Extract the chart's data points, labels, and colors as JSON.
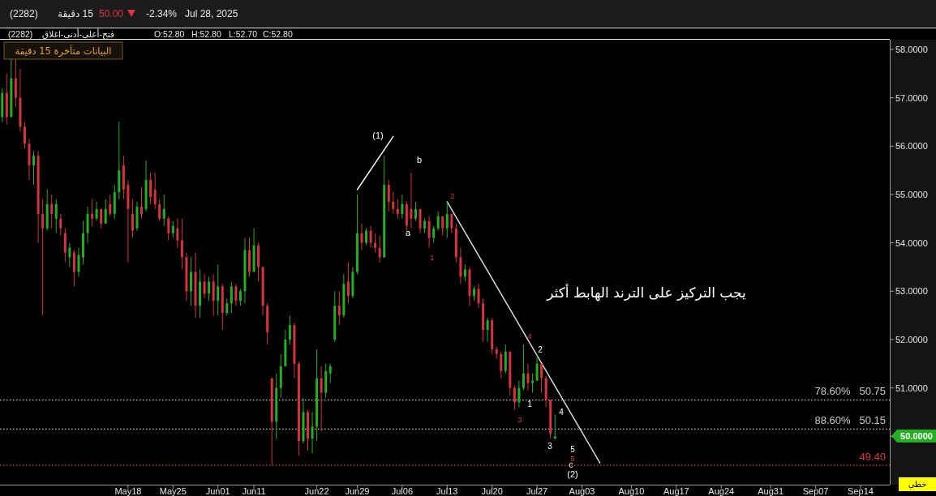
{
  "chart_data": {
    "type": "candlestick",
    "title": "(2282)",
    "subtitle": "15 دقيقة",
    "categories": [
      null,
      null,
      null,
      null,
      null,
      null,
      null,
      null,
      null,
      null,
      null,
      null,
      null,
      null,
      null,
      null,
      null,
      null,
      null,
      null,
      null,
      null,
      null,
      null,
      null,
      null,
      null,
      null,
      "May18",
      null,
      null,
      null,
      null,
      null,
      null,
      null,
      null,
      null,
      "May25",
      null,
      null,
      null,
      null,
      null,
      null,
      null,
      null,
      null,
      "Jun01",
      null,
      null,
      null,
      null,
      null,
      null,
      null,
      "Jun11",
      null,
      null,
      null,
      null,
      null,
      null,
      null,
      null,
      null,
      null,
      null,
      null,
      null,
      "Jun22",
      null,
      null,
      null,
      null,
      null,
      null,
      null,
      null,
      "Jun29",
      null,
      null,
      null,
      null,
      null,
      null,
      null,
      null,
      null,
      "Jul06",
      null,
      null,
      null,
      null,
      null,
      null,
      null,
      null,
      null,
      "Jul13",
      null,
      null,
      null,
      null,
      null,
      null,
      null,
      null,
      null,
      "Jul20",
      null,
      null,
      null,
      null,
      null,
      null,
      null,
      null,
      null,
      "Jul27",
      null,
      null,
      null,
      null,
      null,
      null,
      null,
      null,
      null,
      "Aug03",
      null,
      null,
      null,
      null,
      null,
      null,
      null,
      null,
      null,
      null,
      "Aug10",
      null,
      null,
      null,
      null,
      null,
      null,
      null,
      null,
      null,
      "Aug17",
      null,
      null,
      null,
      null,
      null,
      null,
      null,
      null,
      null,
      "Aug24",
      null,
      null,
      null,
      null,
      null,
      null,
      null,
      null,
      null,
      null,
      "Aug31",
      null,
      null,
      null,
      null,
      null,
      null,
      null,
      null,
      null,
      "Sep07",
      null,
      null,
      null,
      null,
      null,
      null,
      null,
      null,
      null,
      "Sep14",
      null,
      null,
      null,
      null,
      null,
      null
    ],
    "ylim": [
      49,
      58.2
    ],
    "yticks": [
      {
        "value": 50,
        "label": null
      },
      {
        "value": 51,
        "label": "51.0000"
      },
      {
        "value": 52,
        "label": "52.0000"
      },
      {
        "value": 53,
        "label": "53.0000"
      },
      {
        "value": 54,
        "label": "54.0000"
      },
      {
        "value": 55,
        "label": "55.0000"
      },
      {
        "value": 56,
        "label": "56.0000"
      },
      {
        "value": 57,
        "label": "57.0000"
      },
      {
        "value": 58,
        "label": "58.0000"
      }
    ],
    "ohlc": [
      [
        56.6,
        57.2,
        56.5,
        57.1
      ],
      [
        57.1,
        57.5,
        56.45,
        56.6
      ],
      [
        56.6,
        57.8,
        56.6,
        57.4
      ],
      [
        57.4,
        57.8,
        56.8,
        57.0
      ],
      [
        57.0,
        57.6,
        56.3,
        56.4
      ],
      [
        56.4,
        56.5,
        55.95,
        56.05
      ],
      [
        56.05,
        56.15,
        55.3,
        55.6
      ],
      [
        55.6,
        55.9,
        55.2,
        55.8
      ],
      [
        55.8,
        55.9,
        54.0,
        54.6
      ],
      [
        54.6,
        54.9,
        52.5,
        54.3
      ],
      [
        54.3,
        55.1,
        54.25,
        54.8
      ],
      [
        54.8,
        55.0,
        54.3,
        54.6
      ],
      [
        54.5,
        54.9,
        54.2,
        54.8
      ],
      [
        54.5,
        54.6,
        54.15,
        54.3
      ],
      [
        54.2,
        54.3,
        53.6,
        53.8
      ],
      [
        53.7,
        54.0,
        53.5,
        53.9
      ],
      [
        53.8,
        53.85,
        53.1,
        53.4
      ],
      [
        53.4,
        53.9,
        53.3,
        53.75
      ],
      [
        53.7,
        54.45,
        53.55,
        54.2
      ],
      [
        54.2,
        54.75,
        54.0,
        54.6
      ],
      [
        54.6,
        54.9,
        54.35,
        54.5
      ],
      [
        54.5,
        54.85,
        54.45,
        54.7
      ],
      [
        54.7,
        54.7,
        54.3,
        54.4
      ],
      [
        54.4,
        54.9,
        54.4,
        54.7
      ],
      [
        54.8,
        55.0,
        54.55,
        54.6
      ],
      [
        54.6,
        55.2,
        54.5,
        55.05
      ],
      [
        55.05,
        56.5,
        54.9,
        55.5
      ],
      [
        55.6,
        55.8,
        54.9,
        55.1
      ],
      [
        55.2,
        55.3,
        53.6,
        54.7
      ],
      [
        54.6,
        54.9,
        54.1,
        54.25
      ],
      [
        54.3,
        54.85,
        54.25,
        54.75
      ],
      [
        54.75,
        55.15,
        54.5,
        54.6
      ],
      [
        54.7,
        55.7,
        54.65,
        55.3
      ],
      [
        55.3,
        55.45,
        54.8,
        54.95
      ],
      [
        55.1,
        55.45,
        54.7,
        54.8
      ],
      [
        54.8,
        54.9,
        54.45,
        54.5
      ],
      [
        54.5,
        55.0,
        54.35,
        54.7
      ],
      [
        54.5,
        54.55,
        54.05,
        54.2
      ],
      [
        54.2,
        54.45,
        54.1,
        54.35
      ],
      [
        54.3,
        54.5,
        53.9,
        54.05
      ],
      [
        54.05,
        54.5,
        53.45,
        53.7
      ],
      [
        53.7,
        53.8,
        52.8,
        53.0
      ],
      [
        53.0,
        53.7,
        52.7,
        53.4
      ],
      [
        53.4,
        53.8,
        52.45,
        52.7
      ],
      [
        52.7,
        53.45,
        52.45,
        53.2
      ],
      [
        53.2,
        53.35,
        52.85,
        52.95
      ],
      [
        52.95,
        53.3,
        52.8,
        53.2
      ],
      [
        53.2,
        53.35,
        52.5,
        52.8
      ],
      [
        52.8,
        53.55,
        52.5,
        53.1
      ],
      [
        53.1,
        53.15,
        52.2,
        52.55
      ],
      [
        52.55,
        52.85,
        52.5,
        52.75
      ],
      [
        52.75,
        53.2,
        52.55,
        53.1
      ],
      [
        53.1,
        53.15,
        52.7,
        52.8
      ],
      [
        52.8,
        53.05,
        52.7,
        53.0
      ],
      [
        53.0,
        54.1,
        52.75,
        53.85
      ],
      [
        53.85,
        54.1,
        53.3,
        53.4
      ],
      [
        53.4,
        54.3,
        53.4,
        53.95
      ],
      [
        53.95,
        54.0,
        53.2,
        53.5
      ],
      [
        53.5,
        53.5,
        52.5,
        52.7
      ],
      [
        52.7,
        52.75,
        51.9,
        52.15
      ],
      [
        51.2,
        51.2,
        49.4,
        50.3
      ],
      [
        50.3,
        51.3,
        49.95,
        51.0
      ],
      [
        51.0,
        51.7,
        50.8,
        51.45
      ],
      [
        51.45,
        52.2,
        51.45,
        52.0
      ],
      [
        52.0,
        52.5,
        51.9,
        52.3
      ],
      [
        52.3,
        52.35,
        51.2,
        51.5
      ],
      [
        51.5,
        51.55,
        49.6,
        49.9
      ],
      [
        49.9,
        50.8,
        49.85,
        50.5
      ],
      [
        50.5,
        50.55,
        49.7,
        49.95
      ],
      [
        49.95,
        50.5,
        49.65,
        50.2
      ],
      [
        50.2,
        51.8,
        49.9,
        51.2
      ],
      [
        51.2,
        51.45,
        50.1,
        50.9
      ],
      [
        50.9,
        51.5,
        50.8,
        51.35
      ],
      [
        51.3,
        51.5,
        51.1,
        51.45
      ],
      [
        52.0,
        53.0,
        51.95,
        52.7
      ],
      [
        52.7,
        53.0,
        52.3,
        52.5
      ],
      [
        52.5,
        53.35,
        52.45,
        53.15
      ],
      [
        53.2,
        53.6,
        52.75,
        52.9
      ],
      [
        52.9,
        53.5,
        52.85,
        53.4
      ],
      [
        53.4,
        55.0,
        53.35,
        54.2
      ],
      [
        54.2,
        54.4,
        53.85,
        54.0
      ],
      [
        54.0,
        54.3,
        53.95,
        54.25
      ],
      [
        54.25,
        54.35,
        53.9,
        54.0
      ],
      [
        54.0,
        54.2,
        53.8,
        53.9
      ],
      [
        53.9,
        54.15,
        53.6,
        53.7
      ],
      [
        53.7,
        55.8,
        53.7,
        55.2
      ],
      [
        55.2,
        55.3,
        54.65,
        54.85
      ],
      [
        54.85,
        55.05,
        54.6,
        54.7
      ],
      [
        54.7,
        54.9,
        54.5,
        54.6
      ],
      [
        54.6,
        55.0,
        54.5,
        54.8
      ],
      [
        54.8,
        54.85,
        54.25,
        54.35
      ],
      [
        54.7,
        55.45,
        54.3,
        54.5
      ],
      [
        54.5,
        54.85,
        54.45,
        54.7
      ],
      [
        54.7,
        54.7,
        54.2,
        54.3
      ],
      [
        54.3,
        54.5,
        54.2,
        54.45
      ],
      [
        54.45,
        54.55,
        53.9,
        54.1
      ],
      [
        54.1,
        54.35,
        54.0,
        54.3
      ],
      [
        54.3,
        54.65,
        54.25,
        54.55
      ],
      [
        54.55,
        54.55,
        54.15,
        54.3
      ],
      [
        54.3,
        54.85,
        54.1,
        54.6
      ],
      [
        54.6,
        54.6,
        54.2,
        54.3
      ],
      [
        54.3,
        54.4,
        53.6,
        53.7
      ],
      [
        53.7,
        53.9,
        53.15,
        53.3
      ],
      [
        53.3,
        53.55,
        53.2,
        53.45
      ],
      [
        53.45,
        53.5,
        52.7,
        52.9
      ],
      [
        52.9,
        53.1,
        52.8,
        53.05
      ],
      [
        53.05,
        53.15,
        52.65,
        52.75
      ],
      [
        52.75,
        52.85,
        51.95,
        52.2
      ],
      [
        52.2,
        52.45,
        51.95,
        52.4
      ],
      [
        52.4,
        52.45,
        51.7,
        51.8
      ],
      [
        51.8,
        51.85,
        51.6,
        51.7
      ],
      [
        51.7,
        51.75,
        51.2,
        51.35
      ],
      [
        51.35,
        51.9,
        51.3,
        51.75
      ],
      [
        51.75,
        51.75,
        50.85,
        51.0
      ],
      [
        51.0,
        51.05,
        50.55,
        50.7
      ],
      [
        50.7,
        51.15,
        50.6,
        51.0
      ],
      [
        51.0,
        51.9,
        50.95,
        51.3
      ],
      [
        51.3,
        51.5,
        50.95,
        51.1
      ],
      [
        51.1,
        51.3,
        50.9,
        51.15
      ],
      [
        51.15,
        51.7,
        51.15,
        51.5
      ],
      [
        51.5,
        51.5,
        50.9,
        51.2
      ],
      [
        51.2,
        51.25,
        50.6,
        50.75
      ],
      [
        50.75,
        50.75,
        49.95,
        50.05
      ],
      [
        49.95,
        50.45,
        49.95,
        50.0
      ],
      null,
      null,
      null,
      null,
      null,
      null,
      null,
      null,
      null,
      null,
      null,
      null,
      null,
      null,
      null,
      null,
      null,
      null,
      null,
      null,
      null,
      null,
      null,
      null,
      null,
      null,
      null,
      null,
      null,
      null,
      null,
      null,
      null,
      null,
      null,
      null,
      null,
      null,
      null,
      null,
      null,
      null,
      null,
      null,
      null,
      null,
      null,
      null,
      null,
      null,
      null,
      null,
      null,
      null,
      null,
      null,
      null,
      null,
      null,
      null,
      null,
      null,
      null,
      null,
      null,
      null,
      null,
      null,
      null,
      null,
      null,
      null,
      null,
      null
    ],
    "colors": [
      "#22b022",
      "#d8323e",
      "#22b022",
      "#d8323e",
      "#d8323e",
      "#d8323e",
      "#d8323e",
      "#22b022",
      "#d8323e",
      "#d8323e",
      "#22b022",
      "#d8323e",
      "#22b022",
      "#d8323e",
      "#d8323e",
      "#22b022",
      "#d8323e",
      "#22b022",
      "#22b022",
      "#22b022",
      "#d8323e",
      "#22b022",
      "#d8323e",
      "#22b022",
      "#d8323e",
      "#22b022",
      "#22b022",
      "#d8323e",
      "#d8323e",
      "#d8323e",
      "#22b022",
      "#d8323e",
      "#22b022",
      "#d8323e",
      "#d8323e",
      "#d8323e",
      "#22b022",
      "#d8323e",
      "#22b022",
      "#d8323e",
      "#d8323e",
      "#d8323e",
      "#22b022",
      "#d8323e",
      "#22b022",
      "#d8323e",
      "#22b022",
      "#d8323e",
      "#22b022",
      "#d8323e",
      "#22b022",
      "#22b022",
      "#d8323e",
      "#22b022",
      "#22b022",
      "#d8323e",
      "#22b022",
      "#d8323e",
      "#d8323e",
      "#d8323e",
      "#d8323e",
      "#22b022",
      "#22b022",
      "#22b022",
      "#22b022",
      "#d8323e",
      "#d8323e",
      "#22b022",
      "#d8323e",
      "#22b022",
      "#22b022",
      "#d8323e",
      "#22b022",
      "#22b022",
      "#22b022",
      "#d8323e",
      "#22b022",
      "#d8323e",
      "#22b022",
      "#22b022",
      "#d8323e",
      "#22b022",
      "#d8323e",
      "#d8323e",
      "#d8323e",
      "#22b022",
      "#d8323e",
      "#d8323e",
      "#d8323e",
      "#22b022",
      "#d8323e",
      "#d8323e",
      "#22b022",
      "#d8323e",
      "#22b022",
      "#d8323e",
      "#22b022",
      "#22b022",
      "#d8323e",
      "#22b022",
      "#d8323e",
      "#d8323e",
      "#d8323e",
      "#22b022",
      "#d8323e",
      "#22b022",
      "#d8323e",
      "#d8323e",
      "#22b022",
      "#d8323e",
      "#d8323e",
      "#d8323e",
      "#22b022",
      "#d8323e",
      "#d8323e",
      "#22b022",
      "#22b022",
      "#d8323e",
      "#22b022",
      "#22b022",
      "#d8323e",
      "#d8323e",
      "#d8323e",
      "#22b022",
      null,
      null,
      null,
      null,
      null,
      null,
      null,
      null,
      null,
      null,
      null,
      null,
      null,
      null,
      null,
      null,
      null,
      null,
      null,
      null,
      null,
      null,
      null,
      null,
      null,
      null,
      null,
      null,
      null,
      null,
      null,
      null,
      null,
      null,
      null,
      null,
      null,
      null,
      null,
      null,
      null,
      null,
      null,
      null,
      null,
      null,
      null,
      null,
      null,
      null,
      null,
      null,
      null,
      null,
      null,
      null,
      null,
      null,
      null,
      null,
      null,
      null,
      null,
      null,
      null,
      null,
      null,
      null,
      null,
      null,
      null,
      null,
      null,
      null
    ],
    "series": [
      {
        "type": "line",
        "color": "#f2f2f2",
        "values": [
          null,
          null,
          null,
          null,
          null,
          null,
          null,
          null,
          null,
          null,
          null,
          null,
          null,
          null,
          null,
          null,
          null,
          null,
          null,
          null,
          null,
          null,
          null,
          null,
          null,
          null,
          null,
          null,
          null,
          null,
          null,
          null,
          null,
          null,
          null,
          null,
          null,
          null,
          null,
          null,
          null,
          null,
          null,
          null,
          null,
          null,
          null,
          null,
          null,
          null,
          null,
          null,
          null,
          null,
          null,
          null,
          null,
          null,
          null,
          null,
          null,
          null,
          null,
          null,
          null,
          null,
          null,
          null,
          null,
          null,
          null,
          null,
          null,
          null,
          null,
          null,
          null,
          null,
          null,
          55.1,
          null,
          null,
          null,
          null,
          null,
          null,
          null,
          56.2,
          null,
          null,
          null,
          null,
          null,
          null,
          null,
          null,
          null,
          null,
          null,
          null,
          null,
          null,
          null,
          null,
          null,
          null,
          null,
          null,
          null,
          null,
          null,
          null,
          null,
          null,
          null,
          null,
          null,
          null,
          null,
          null,
          null,
          null,
          null,
          null,
          null,
          null,
          null,
          null,
          null,
          null,
          null,
          null,
          null,
          null,
          null,
          null,
          null,
          null,
          null,
          null,
          null,
          null,
          null,
          null,
          null,
          null,
          null,
          null,
          null,
          null,
          null,
          null,
          null,
          null,
          null,
          null,
          null,
          null,
          null,
          null,
          null,
          null,
          null,
          null,
          null,
          null,
          null,
          null,
          null,
          null,
          null,
          null,
          null,
          null,
          null,
          null,
          null,
          null,
          null,
          null,
          null,
          null,
          null,
          null,
          null,
          null,
          null,
          null,
          null,
          null,
          null,
          null,
          null,
          null,
          null,
          null,
          null,
          null
        ]
      },
      {
        "type": "line",
        "color": "#d9d9d9",
        "values": [
          null,
          null,
          null,
          null,
          null,
          null,
          null,
          null,
          null,
          null,
          null,
          null,
          null,
          null,
          null,
          null,
          null,
          null,
          null,
          null,
          null,
          null,
          null,
          null,
          null,
          null,
          null,
          null,
          null,
          null,
          null,
          null,
          null,
          null,
          null,
          null,
          null,
          null,
          null,
          null,
          null,
          null,
          null,
          null,
          null,
          null,
          null,
          null,
          null,
          null,
          null,
          null,
          null,
          null,
          null,
          null,
          null,
          null,
          null,
          null,
          null,
          null,
          null,
          null,
          null,
          null,
          null,
          null,
          null,
          null,
          null,
          null,
          null,
          null,
          null,
          null,
          null,
          null,
          null,
          null,
          null,
          null,
          null,
          null,
          null,
          null,
          null,
          null,
          null,
          null,
          null,
          null,
          null,
          null,
          null,
          null,
          null,
          null,
          null,
          54.85,
          null,
          null,
          null,
          null,
          null,
          null,
          null,
          null,
          null,
          null,
          null,
          null,
          null,
          null,
          null,
          null,
          null,
          null,
          null,
          null,
          null,
          null,
          null,
          null,
          null,
          null,
          null,
          null,
          null,
          null,
          null,
          null,
          null,
          49.45,
          null,
          null,
          null,
          null,
          null,
          null,
          null,
          null,
          null,
          null,
          null,
          null,
          null,
          null,
          null,
          null,
          null,
          null,
          null,
          null,
          null,
          null,
          null,
          null,
          null,
          null,
          null,
          null,
          null,
          null,
          null,
          null,
          null,
          null,
          null,
          null,
          null,
          null,
          null,
          null,
          null,
          null,
          null,
          null,
          null,
          null,
          null,
          null,
          null,
          null,
          null,
          null,
          null,
          null,
          null,
          null,
          null,
          null,
          null,
          null,
          null,
          null,
          null,
          null
        ]
      }
    ],
    "ref_lines": [
      {
        "axis": "y",
        "value": 50.75,
        "label": "78.60%   50.75",
        "color": "#c8c8c8",
        "line_style": "dotted"
      },
      {
        "axis": "y",
        "value": 50.15,
        "label": "88.60%   50.15",
        "color": "#c8c8c8",
        "line_style": "dotted"
      },
      {
        "axis": "y",
        "value": 49.4,
        "label": "49.40",
        "color": "#e0323c",
        "line_style": "dotted"
      }
    ],
    "annotations": [
      "50.00",
      "-2.34%",
      "Jul 28, 2025",
      "(2282)",
      "فتح-أعلى-أدنى-اغلاق",
      "O:52.80",
      "H:52.80",
      "L:52.70",
      "C:52.80",
      "البيانات متأخرة 15 دقيقة",
      "خطي",
      "50.0000",
      "يجب التركيز على الترند الهابط أكثر",
      "(1)",
      "b",
      "a",
      "2",
      "1",
      "4",
      "2",
      "1",
      "3",
      "4",
      "3",
      "5",
      "5",
      "c",
      "(2)"
    ]
  }
}
